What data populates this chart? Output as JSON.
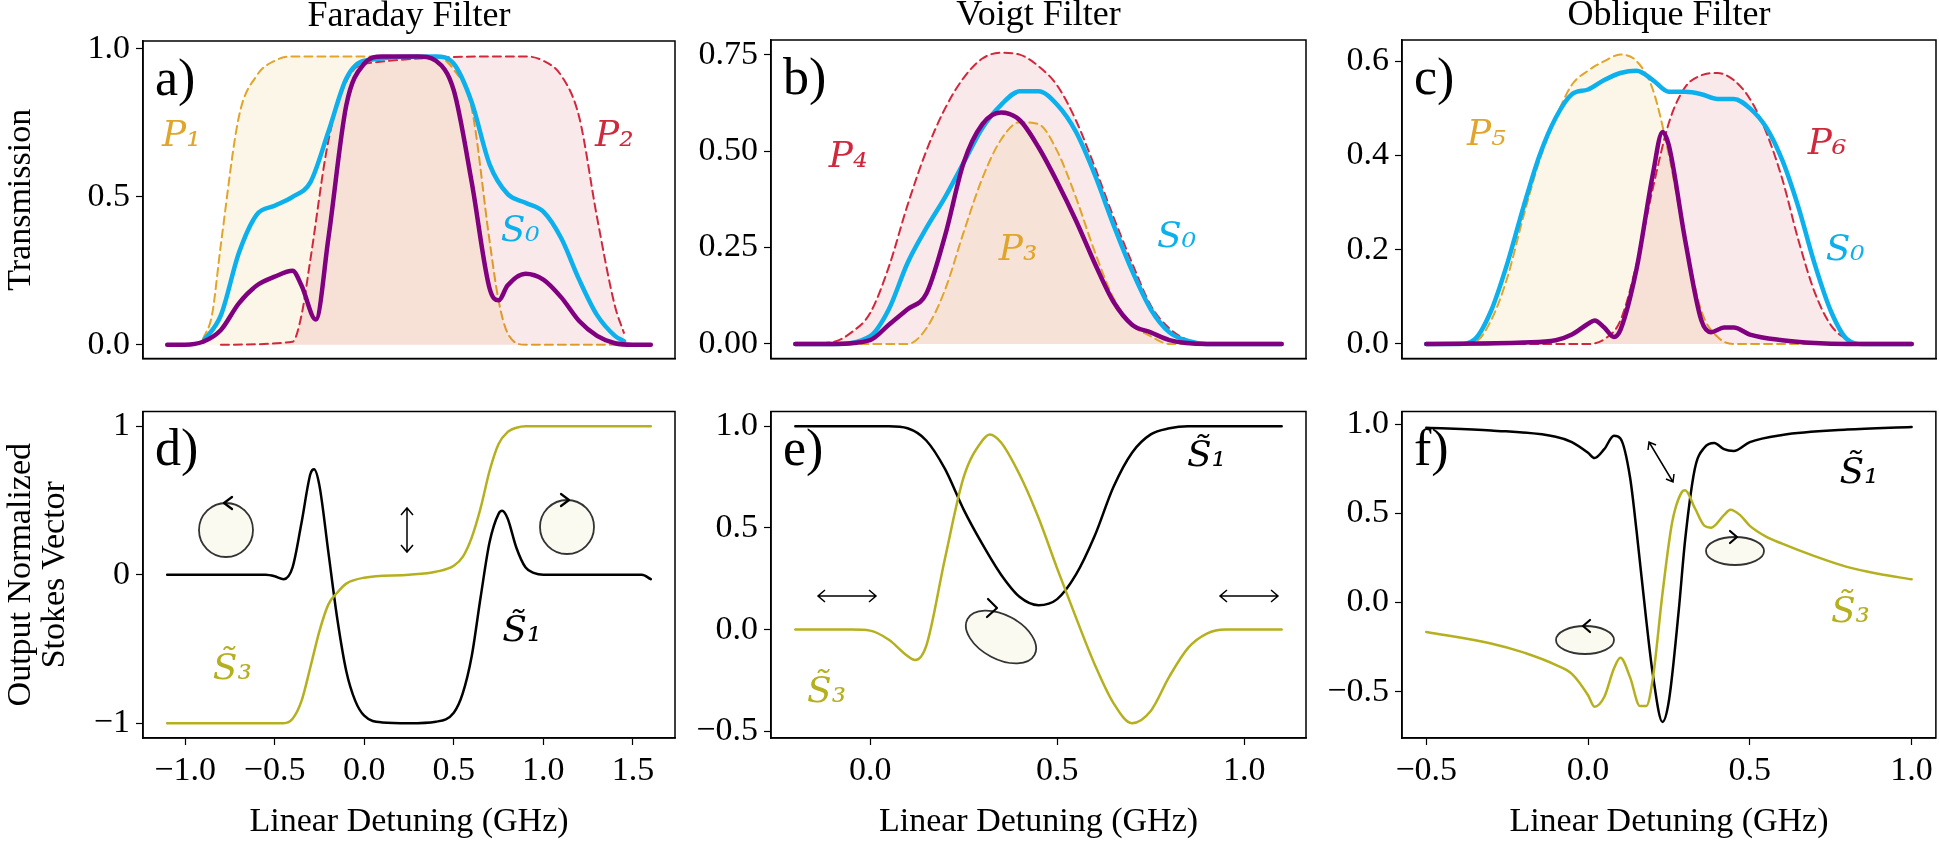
{
  "chart_data": [
    {
      "type": "line",
      "title": "Faraday Filter",
      "ylabel": "Transmission",
      "xlim": [
        -1.235,
        1.735
      ],
      "ylim": [
        -0.047,
        1.027
      ],
      "yticks": [
        {
          "value": 0,
          "label": "0.0"
        },
        {
          "value": 0.5,
          "label": "0.5"
        },
        {
          "value": 1,
          "label": "1.0"
        }
      ],
      "tick_labels": "y",
      "grid": false,
      "legend": false,
      "marker": "none",
      "annotations": [
        "a)"
      ],
      "series": [
        {
          "name": "P₁",
          "type": "area",
          "line_style": "dashed",
          "color": "#e0a52a",
          "x": [
            -0.9,
            -0.85,
            -0.8,
            -0.7,
            -0.6,
            -0.5,
            -0.4,
            0,
            0.4,
            0.5,
            0.6,
            0.7,
            0.75,
            0.8,
            0.9,
            1.5
          ],
          "values": [
            0.02,
            0.1,
            0.34,
            0.77,
            0.91,
            0.96,
            0.975,
            0.975,
            0.975,
            0.93,
            0.8,
            0.35,
            0.15,
            0.04,
            0,
            0
          ]
        },
        {
          "name": "P₂",
          "type": "area",
          "line_style": "dashed",
          "color": "#d0283c",
          "x": [
            -0.8,
            -0.4,
            -0.35,
            -0.3,
            -0.2,
            -0.1,
            0,
            0.1,
            0.5,
            0.9,
            1.0,
            1.1,
            1.2,
            1.3,
            1.4,
            1.45
          ],
          "values": [
            0,
            0.01,
            0.1,
            0.29,
            0.69,
            0.89,
            0.95,
            null,
            null,
            0.975,
            0.96,
            0.91,
            0.77,
            0.43,
            0.13,
            0.04
          ]
        },
        {
          "name": "S₀",
          "type": "line",
          "color": "#0cb0ec",
          "x": [
            -0.9,
            -0.8,
            -0.7,
            -0.6,
            -0.5,
            -0.4,
            -0.3,
            -0.2,
            -0.1,
            0,
            0.1,
            0.2,
            0.3,
            0.4,
            0.5,
            0.6,
            0.7,
            0.8,
            0.9,
            1.0,
            1.1,
            1.2,
            1.3,
            1.4,
            1.45
          ],
          "values": [
            0.01,
            0.1,
            0.31,
            0.44,
            0.47,
            0.5,
            0.55,
            0.72,
            0.9,
            0.96,
            null,
            null,
            null,
            0.975,
            0.95,
            0.82,
            0.61,
            0.51,
            0.48,
            0.45,
            0.36,
            0.22,
            0.1,
            0.03,
            0.012
          ]
        },
        {
          "type": "line",
          "color": "#800080",
          "x": [
            -1.1,
            -1.0,
            -0.9,
            -0.8,
            -0.7,
            -0.6,
            -0.5,
            -0.4,
            -0.35,
            -0.27,
            -0.2,
            -0.1,
            0,
            0.1,
            0.2,
            0.3,
            0.4,
            0.5,
            0.6,
            0.7,
            0.75,
            0.8,
            0.9,
            1.0,
            1.1,
            1.2,
            1.3,
            1.4,
            1.5,
            1.6
          ],
          "values": [
            0,
            0,
            0.01,
            0.05,
            0.14,
            0.2,
            0.23,
            0.25,
            0.2,
            0.085,
            0.36,
            0.81,
            0.95,
            0.975,
            0.975,
            0.975,
            0.96,
            0.86,
            0.55,
            0.19,
            0.15,
            0.2,
            0.24,
            0.22,
            0.16,
            0.08,
            0.03,
            0.005,
            0,
            0
          ]
        }
      ]
    },
    {
      "type": "line",
      "title": "Voigt Filter",
      "xlim": [
        -0.265,
        1.165
      ],
      "ylim": [
        -0.038,
        0.788
      ],
      "yticks": [
        {
          "value": 0,
          "label": "0.00"
        },
        0.25,
        {
          "value": 0.5,
          "label": "0.50"
        },
        0.75
      ],
      "tick_labels": "y",
      "grid": false,
      "legend": false,
      "marker": "none",
      "annotations": [
        "b)"
      ],
      "series": [
        {
          "name": "P₄",
          "type": "area",
          "line_style": "dashed",
          "color": "#d0283c",
          "x": [
            -0.2,
            -0.1,
            -0.05,
            0,
            0.05,
            0.1,
            0.15,
            0.2,
            0.25,
            0.3,
            0.35,
            0.4,
            0.45,
            0.5,
            0.55,
            0.6,
            0.65,
            0.7,
            0.75,
            0.8,
            0.85,
            0.9,
            1.1
          ],
          "values": [
            0,
            0.005,
            0.03,
            0.08,
            0.2,
            0.36,
            0.5,
            0.61,
            0.69,
            0.74,
            0.755,
            0.75,
            0.72,
            0.67,
            0.58,
            0.46,
            0.33,
            0.21,
            0.1,
            0.04,
            0.01,
            0,
            0
          ]
        },
        {
          "name": "P₃",
          "type": "area",
          "line_style": "dashed",
          "color": "#e0a52a",
          "x": [
            -0.2,
            0.1,
            0.15,
            0.2,
            0.25,
            0.3,
            0.35,
            0.4,
            0.45,
            0.5,
            0.55,
            0.6,
            0.65,
            0.7,
            0.75,
            0.8,
            1.1
          ],
          "values": [
            0,
            0,
            0.04,
            0.14,
            0.29,
            0.43,
            0.53,
            0.575,
            0.57,
            0.5,
            0.38,
            0.24,
            0.12,
            0.05,
            0.02,
            0,
            0
          ]
        },
        {
          "name": "S₀",
          "type": "line",
          "color": "#0cb0ec",
          "x": [
            -0.2,
            -0.1,
            0,
            0.05,
            0.1,
            0.15,
            0.2,
            0.25,
            0.3,
            0.35,
            0.4,
            0.45,
            0.5,
            0.55,
            0.6,
            0.65,
            0.7,
            0.75,
            0.8,
            0.85,
            0.9,
            1.1
          ],
          "values": [
            0,
            0,
            0.02,
            0.09,
            0.21,
            0.3,
            0.38,
            0.47,
            0.56,
            0.62,
            0.655,
            0.655,
            0.62,
            0.55,
            0.44,
            0.31,
            0.19,
            0.09,
            0.03,
            0.008,
            0,
            0
          ]
        },
        {
          "type": "line",
          "color": "#800080",
          "x": [
            -0.2,
            -0.1,
            0,
            0.05,
            0.1,
            0.15,
            0.2,
            0.25,
            0.3,
            0.35,
            0.4,
            0.45,
            0.5,
            0.55,
            0.6,
            0.65,
            0.7,
            0.75,
            0.8,
            0.9,
            1.1
          ],
          "values": [
            0,
            0,
            0.01,
            0.05,
            0.09,
            0.13,
            0.28,
            0.47,
            0.57,
            0.6,
            0.58,
            0.51,
            0.42,
            0.32,
            0.21,
            0.11,
            0.05,
            0.03,
            0.01,
            0,
            0
          ]
        }
      ]
    },
    {
      "type": "line",
      "title": "Oblique Filter",
      "xlim": [
        -0.575,
        1.075
      ],
      "ylim": [
        -0.031,
        0.645
      ],
      "yticks": [
        {
          "value": 0,
          "label": "0.0"
        },
        0.2,
        0.4,
        0.6
      ],
      "tick_labels": "y",
      "grid": false,
      "legend": false,
      "marker": "none",
      "annotations": [
        "c)"
      ],
      "series": [
        {
          "name": "P₅",
          "type": "area",
          "line_style": "dashed",
          "color": "#e0a52a",
          "x": [
            -0.5,
            -0.35,
            -0.3,
            -0.25,
            -0.2,
            -0.15,
            -0.1,
            -0.05,
            0,
            0.05,
            0.1,
            0.15,
            0.2,
            0.25,
            0.3,
            0.35,
            0.4,
            0.45,
            1.0
          ],
          "values": [
            0,
            0.005,
            0.05,
            0.14,
            0.27,
            0.39,
            0.48,
            0.55,
            0.58,
            0.6,
            0.614,
            0.6,
            0.54,
            0.4,
            0.22,
            0.07,
            0.015,
            0,
            0
          ]
        },
        {
          "name": "P₆",
          "type": "area",
          "line_style": "dashed",
          "color": "#d0283c",
          "x": [
            -0.5,
            0,
            0.05,
            0.1,
            0.15,
            0.2,
            0.25,
            0.3,
            0.35,
            0.4,
            0.45,
            0.5,
            0.55,
            0.6,
            0.65,
            0.7,
            0.75,
            0.8,
            0.85,
            1.0
          ],
          "values": [
            0,
            0,
            0.01,
            0.05,
            0.17,
            0.33,
            0.47,
            0.545,
            0.57,
            0.575,
            0.56,
            0.52,
            0.45,
            0.35,
            0.22,
            0.11,
            0.04,
            0.01,
            0,
            0
          ]
        },
        {
          "name": "S₀",
          "type": "line",
          "color": "#0cb0ec",
          "x": [
            -0.5,
            -0.4,
            -0.35,
            -0.3,
            -0.25,
            -0.2,
            -0.15,
            -0.1,
            -0.05,
            0,
            0.05,
            0.1,
            0.15,
            0.2,
            0.25,
            0.3,
            0.35,
            0.4,
            0.45,
            0.5,
            0.55,
            0.6,
            0.65,
            0.7,
            0.75,
            0.8,
            0.85,
            1.0
          ],
          "values": [
            0,
            0,
            0.01,
            0.07,
            0.17,
            0.29,
            0.4,
            0.48,
            0.53,
            0.54,
            0.56,
            0.575,
            0.58,
            0.56,
            0.535,
            0.535,
            0.53,
            0.52,
            0.52,
            0.5,
            0.46,
            0.39,
            0.29,
            0.17,
            0.07,
            0.01,
            0,
            0
          ]
        },
        {
          "type": "line",
          "color": "#800080",
          "x": [
            -0.5,
            -0.2,
            -0.1,
            -0.05,
            0,
            0.02,
            0.05,
            0.08,
            0.1,
            0.15,
            0.2,
            0.23,
            0.25,
            0.3,
            0.35,
            0.38,
            0.42,
            0.45,
            0.5,
            0.6,
            0.7,
            0.8,
            1.0
          ],
          "values": [
            0,
            0.003,
            0.008,
            0.02,
            0.043,
            0.05,
            0.035,
            0.015,
            0.03,
            0.16,
            0.36,
            0.45,
            0.42,
            0.22,
            0.05,
            0.025,
            0.035,
            0.035,
            0.02,
            0.008,
            0.002,
            0,
            0
          ]
        }
      ]
    },
    {
      "type": "line",
      "ylabel": "Output Normalized\nStokes Vector",
      "xlabel": "Linear Detuning (GHz)",
      "xlim": [
        -1.235,
        1.735
      ],
      "ylim": [
        -1.1,
        1.1
      ],
      "xticks": [
        {
          "value": -1,
          "label": "−1.0"
        },
        {
          "value": -0.5,
          "label": "−0.5"
        },
        {
          "value": 0,
          "label": "0.0"
        },
        {
          "value": 0.5,
          "label": "0.5"
        },
        {
          "value": 1,
          "label": "1.0"
        },
        {
          "value": 1.5,
          "label": "1.5"
        }
      ],
      "yticks": [
        {
          "value": -1,
          "label": "−1"
        },
        {
          "value": 0,
          "label": "0"
        },
        {
          "value": 1,
          "label": "1"
        }
      ],
      "grid": false,
      "legend": false,
      "marker": "none",
      "annotations": [
        "d)"
      ],
      "series": [
        {
          "name": "S̃₁",
          "type": "line",
          "color": "#000000",
          "x": [
            -1.1,
            -0.55,
            -0.5,
            -0.45,
            -0.4,
            -0.35,
            -0.3,
            -0.28,
            -0.25,
            -0.2,
            -0.15,
            -0.1,
            -0.05,
            0,
            0.1,
            0.25,
            0.4,
            0.5,
            0.55,
            0.6,
            0.65,
            0.7,
            0.75,
            0.77,
            0.8,
            0.85,
            0.9,
            0.95,
            1.0,
            1.55,
            1.6
          ],
          "values": [
            0,
            0,
            -0.01,
            -0.03,
            0.05,
            0.35,
            0.68,
            0.71,
            0.6,
            0.15,
            -0.3,
            -0.65,
            -0.85,
            -0.95,
            -0.995,
            -1,
            -0.99,
            -0.93,
            -0.8,
            -0.55,
            -0.15,
            0.22,
            0.41,
            0.43,
            0.38,
            0.18,
            0.05,
            0.01,
            0,
            0,
            -0.03
          ]
        },
        {
          "name": "S̃₃",
          "type": "line",
          "color": "#b5b01e",
          "x": [
            -1.1,
            -0.45,
            -0.4,
            -0.35,
            -0.3,
            -0.25,
            -0.2,
            -0.15,
            -0.1,
            0,
            0.25,
            0.4,
            0.5,
            0.55,
            0.6,
            0.65,
            0.7,
            0.75,
            0.8,
            0.85,
            0.9,
            1.6
          ],
          "values": [
            -1,
            -1,
            -0.97,
            -0.85,
            -0.62,
            -0.38,
            -0.2,
            -0.12,
            -0.06,
            -0.02,
            0,
            0.02,
            0.06,
            0.12,
            0.25,
            0.45,
            0.7,
            0.88,
            0.96,
            0.99,
            1,
            1
          ]
        }
      ]
    },
    {
      "type": "line",
      "xlabel": "Linear Detuning (GHz)",
      "xlim": [
        -0.265,
        1.165
      ],
      "ylim": [
        -0.533,
        1.073
      ],
      "xticks": [
        {
          "value": 0,
          "label": "0.0"
        },
        0.5,
        {
          "value": 1,
          "label": "1.0"
        }
      ],
      "yticks": [
        {
          "value": -0.5,
          "label": "−0.5"
        },
        {
          "value": 0,
          "label": "0.0"
        },
        0.5,
        {
          "value": 1,
          "label": "1.0"
        }
      ],
      "grid": false,
      "legend": false,
      "marker": "none",
      "annotations": [
        "e)"
      ],
      "series": [
        {
          "name": "S̃₁",
          "type": "line",
          "color": "#000000",
          "x": [
            -0.2,
            0.05,
            0.1,
            0.15,
            0.2,
            0.25,
            0.3,
            0.35,
            0.4,
            0.45,
            0.5,
            0.55,
            0.6,
            0.65,
            0.7,
            0.75,
            0.8,
            0.85,
            1.1
          ],
          "values": [
            1,
            1,
            0.99,
            0.93,
            0.79,
            0.59,
            0.42,
            0.27,
            0.16,
            0.12,
            0.15,
            0.27,
            0.46,
            0.7,
            0.87,
            0.96,
            0.99,
            1,
            1
          ]
        },
        {
          "name": "S̃₃",
          "type": "line",
          "color": "#b5b01e",
          "x": [
            -0.2,
            -0.05,
            0,
            0.05,
            0.1,
            0.12,
            0.15,
            0.2,
            0.25,
            0.3,
            0.32,
            0.35,
            0.4,
            0.45,
            0.5,
            0.55,
            0.6,
            0.65,
            0.7,
            0.75,
            0.8,
            0.85,
            0.9,
            0.95,
            1.1
          ],
          "values": [
            0,
            0,
            -0.005,
            -0.05,
            -0.13,
            -0.15,
            -0.08,
            0.35,
            0.75,
            0.93,
            0.96,
            0.92,
            0.76,
            0.55,
            0.3,
            0.06,
            -0.17,
            -0.36,
            -0.46,
            -0.4,
            -0.23,
            -0.09,
            -0.02,
            0,
            0
          ]
        }
      ]
    },
    {
      "type": "line",
      "xlabel": "Linear Detuning (GHz)",
      "xlim": [
        -0.575,
        1.075
      ],
      "ylim": [
        -0.76,
        1.072
      ],
      "xticks": [
        {
          "value": -0.5,
          "label": "−0.5"
        },
        {
          "value": 0,
          "label": "0.0"
        },
        0.5,
        {
          "value": 1,
          "label": "1.0"
        }
      ],
      "yticks": [
        {
          "value": -0.5,
          "label": "−0.5"
        },
        {
          "value": 0,
          "label": "0.0"
        },
        0.5,
        {
          "value": 1,
          "label": "1.0"
        }
      ],
      "grid": false,
      "legend": false,
      "marker": "none",
      "annotations": [
        "f)"
      ],
      "series": [
        {
          "name": "S̃₁",
          "type": "line",
          "color": "#000000",
          "x": [
            -0.5,
            -0.3,
            -0.1,
            -0.05,
            0,
            0.02,
            0.05,
            0.08,
            0.1,
            0.13,
            0.15,
            0.18,
            0.2,
            0.23,
            0.25,
            0.28,
            0.3,
            0.33,
            0.36,
            0.39,
            0.42,
            0.45,
            0.5,
            0.6,
            0.8,
            1.0
          ],
          "values": [
            0.98,
            0.965,
            0.93,
            0.9,
            0.84,
            0.81,
            0.86,
            0.935,
            0.92,
            0.7,
            0.4,
            -0.1,
            -0.4,
            -0.67,
            -0.55,
            -0.05,
            0.35,
            0.75,
            0.87,
            0.895,
            0.86,
            0.85,
            0.9,
            0.94,
            0.97,
            0.985
          ]
        },
        {
          "name": "S̃₃",
          "type": "line",
          "color": "#b5b01e",
          "x": [
            -0.5,
            -0.3,
            -0.2,
            -0.1,
            -0.05,
            0,
            0.02,
            0.05,
            0.08,
            0.1,
            0.13,
            0.16,
            0.18,
            0.2,
            0.23,
            0.26,
            0.29,
            0.3,
            0.33,
            0.36,
            0.38,
            0.42,
            0.44,
            0.47,
            0.5,
            0.55,
            0.6,
            0.7,
            0.8,
            0.9,
            1.0
          ],
          "values": [
            -0.165,
            -0.23,
            -0.28,
            -0.35,
            -0.4,
            -0.52,
            -0.585,
            -0.53,
            -0.37,
            -0.31,
            -0.42,
            -0.58,
            -0.58,
            -0.43,
            0.05,
            0.45,
            0.62,
            0.63,
            0.53,
            0.43,
            0.42,
            0.49,
            0.52,
            0.49,
            0.43,
            0.37,
            0.33,
            0.26,
            0.2,
            0.16,
            0.13
          ]
        }
      ]
    }
  ]
}
